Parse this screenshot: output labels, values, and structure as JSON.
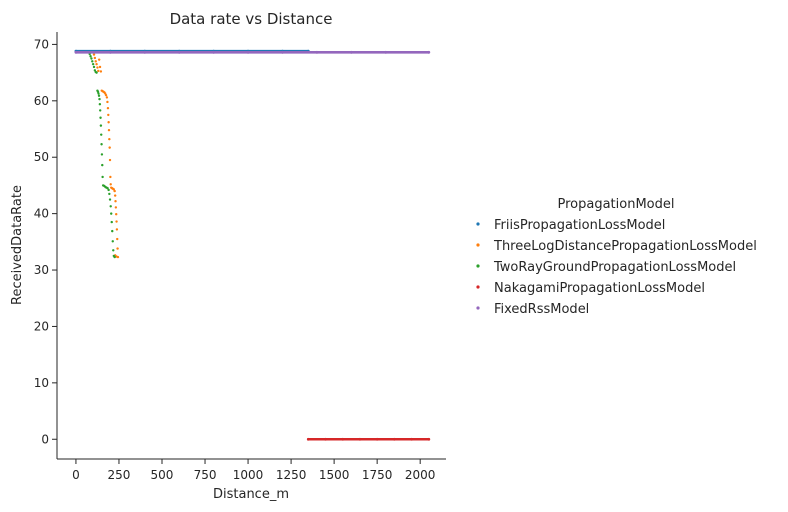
{
  "chart_data": {
    "type": "scatter",
    "title": "Data rate vs Distance",
    "xlabel": "Distance_m",
    "ylabel": "ReceivedDataRate",
    "xlim": [
      -110,
      2150
    ],
    "ylim": [
      -3.5,
      72.2
    ],
    "xticks": [
      0,
      250,
      500,
      750,
      1000,
      1250,
      1500,
      1750,
      2000
    ],
    "yticks": [
      0,
      10,
      20,
      30,
      40,
      50,
      60,
      70
    ],
    "grid": false,
    "legend": {
      "title": "PropagationModel",
      "placement": "right",
      "entries": [
        "FriisPropagationLossModel",
        "ThreeLogDistancePropagationLossModel",
        "TwoRayGroundPropagationLossModel",
        "NakagamiPropagationLossModel",
        "FixedRssModel"
      ]
    },
    "series": [
      {
        "name": "FriisPropagationLossModel",
        "color": "#1f77b4",
        "points": [
          [
            0,
            68.8
          ],
          [
            200,
            68.8
          ],
          [
            400,
            68.8
          ],
          [
            600,
            68.8
          ],
          [
            800,
            68.8
          ],
          [
            1000,
            68.8
          ],
          [
            1200,
            68.8
          ],
          [
            1350,
            68.8
          ]
        ]
      },
      {
        "name": "ThreeLogDistancePropagationLossModel",
        "color": "#ff7f0e",
        "points": [
          [
            105,
            68.2
          ],
          [
            110,
            67.6
          ],
          [
            115,
            67.0
          ],
          [
            120,
            66.5
          ],
          [
            125,
            65.9
          ],
          [
            130,
            65.3
          ],
          [
            135,
            67.3
          ],
          [
            140,
            66.0
          ],
          [
            145,
            65.2
          ],
          [
            150,
            61.8
          ],
          [
            155,
            61.7
          ],
          [
            160,
            61.6
          ],
          [
            165,
            61.5
          ],
          [
            170,
            61.3
          ],
          [
            175,
            61.0
          ],
          [
            180,
            60.6
          ],
          [
            183,
            59.8
          ],
          [
            186,
            58.7
          ],
          [
            188,
            57.5
          ],
          [
            190,
            56.2
          ],
          [
            192,
            54.8
          ],
          [
            194,
            53.2
          ],
          [
            196,
            51.7
          ],
          [
            198,
            49.5
          ],
          [
            200,
            46.5
          ],
          [
            202,
            45.2
          ],
          [
            205,
            44.6
          ],
          [
            210,
            44.5
          ],
          [
            215,
            44.4
          ],
          [
            220,
            44.3
          ],
          [
            225,
            44.0
          ],
          [
            228,
            43.2
          ],
          [
            230,
            42.2
          ],
          [
            232,
            41.1
          ],
          [
            234,
            39.9
          ],
          [
            236,
            38.6
          ],
          [
            238,
            37.2
          ],
          [
            240,
            35.5
          ],
          [
            242,
            33.8
          ],
          [
            228,
            32.6
          ],
          [
            235,
            32.4
          ],
          [
            244,
            32.3
          ]
        ]
      },
      {
        "name": "TwoRayGroundPropagationLossModel",
        "color": "#2ca02c",
        "points": [
          [
            80,
            68.3
          ],
          [
            85,
            67.9
          ],
          [
            90,
            67.5
          ],
          [
            95,
            67.0
          ],
          [
            100,
            66.5
          ],
          [
            105,
            66.0
          ],
          [
            110,
            65.4
          ],
          [
            115,
            65.1
          ],
          [
            120,
            65.0
          ],
          [
            125,
            61.8
          ],
          [
            128,
            61.6
          ],
          [
            131,
            61.3
          ],
          [
            134,
            60.9
          ],
          [
            137,
            60.3
          ],
          [
            139,
            59.4
          ],
          [
            141,
            58.3
          ],
          [
            143,
            57.0
          ],
          [
            145,
            55.6
          ],
          [
            147,
            54.0
          ],
          [
            149,
            52.3
          ],
          [
            151,
            50.5
          ],
          [
            153,
            48.6
          ],
          [
            155,
            46.5
          ],
          [
            158,
            45.0
          ],
          [
            165,
            44.9
          ],
          [
            172,
            44.7
          ],
          [
            178,
            44.6
          ],
          [
            184,
            44.5
          ],
          [
            190,
            44.2
          ],
          [
            194,
            43.5
          ],
          [
            198,
            42.5
          ],
          [
            202,
            41.3
          ],
          [
            205,
            40.0
          ],
          [
            208,
            38.5
          ],
          [
            211,
            36.9
          ],
          [
            214,
            35.1
          ],
          [
            217,
            33.5
          ],
          [
            220,
            32.5
          ],
          [
            225,
            32.3
          ]
        ]
      },
      {
        "name": "NakagamiPropagationLossModel",
        "color": "#d62728",
        "points": [
          [
            1350,
            0
          ],
          [
            1450,
            0
          ],
          [
            1550,
            0
          ],
          [
            1650,
            0
          ],
          [
            1750,
            0
          ],
          [
            1850,
            0
          ],
          [
            1950,
            0
          ],
          [
            2050,
            0
          ]
        ]
      },
      {
        "name": "FixedRssModel",
        "color": "#9467bd",
        "points": [
          [
            0,
            68.6
          ],
          [
            200,
            68.6
          ],
          [
            400,
            68.6
          ],
          [
            600,
            68.6
          ],
          [
            800,
            68.6
          ],
          [
            1000,
            68.6
          ],
          [
            1200,
            68.6
          ],
          [
            1400,
            68.6
          ],
          [
            1600,
            68.6
          ],
          [
            1800,
            68.6
          ],
          [
            2050,
            68.6
          ]
        ]
      }
    ]
  }
}
